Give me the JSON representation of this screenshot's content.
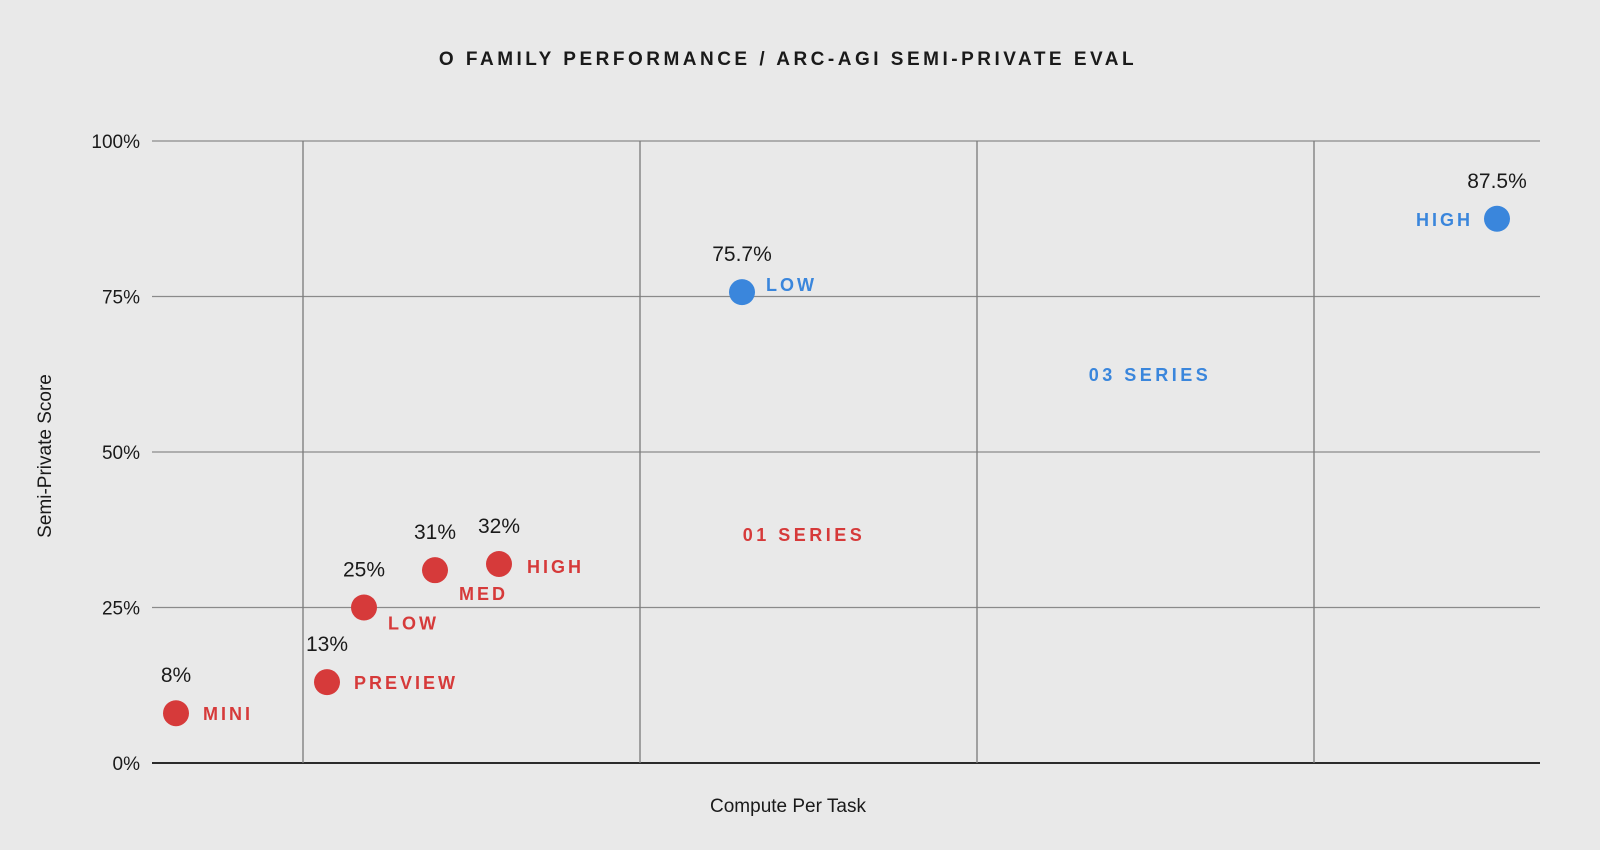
{
  "chart_data": {
    "type": "scatter",
    "title": "O FAMILY PERFORMANCE / ARC-AGI SEMI-PRIVATE EVAL",
    "xlabel": "Compute Per Task",
    "ylabel": "Semi-Private Score",
    "ylim": [
      0,
      100
    ],
    "y_ticks": [
      {
        "value": 0,
        "label": "0%"
      },
      {
        "value": 25,
        "label": "25%"
      },
      {
        "value": 50,
        "label": "50%"
      },
      {
        "value": 75,
        "label": "75%"
      },
      {
        "value": 100,
        "label": "100%"
      }
    ],
    "grid": true,
    "series": [
      {
        "name": "01 SERIES",
        "color": "#d63a3a",
        "points": [
          {
            "label": "MINI",
            "y": 8,
            "value_label": "8%"
          },
          {
            "label": "PREVIEW",
            "y": 13,
            "value_label": "13%"
          },
          {
            "label": "LOW",
            "y": 25,
            "value_label": "25%"
          },
          {
            "label": "MED",
            "y": 31,
            "value_label": "31%"
          },
          {
            "label": "HIGH",
            "y": 32,
            "value_label": "32%"
          }
        ]
      },
      {
        "name": "03 SERIES",
        "color": "#3a86dc",
        "points": [
          {
            "label": "LOW",
            "y": 75.7,
            "value_label": "75.7%"
          },
          {
            "label": "HIGH",
            "y": 87.5,
            "value_label": "87.5%"
          }
        ]
      }
    ]
  }
}
